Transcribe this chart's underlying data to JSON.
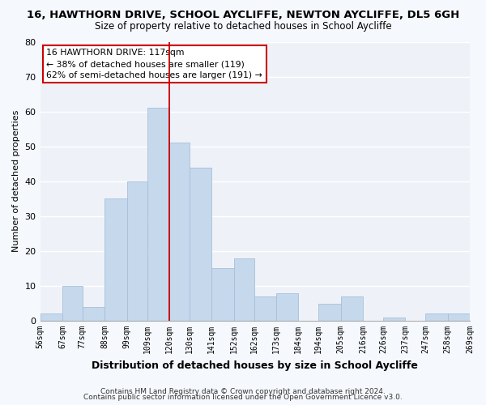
{
  "title": "16, HAWTHORN DRIVE, SCHOOL AYCLIFFE, NEWTON AYCLIFFE, DL5 6GH",
  "subtitle": "Size of property relative to detached houses in School Aycliffe",
  "xlabel": "Distribution of detached houses by size in School Aycliffe",
  "ylabel": "Number of detached properties",
  "bin_edges": [
    56,
    67,
    77,
    88,
    99,
    109,
    120,
    130,
    141,
    152,
    162,
    173,
    184,
    194,
    205,
    216,
    226,
    237,
    247,
    258,
    269
  ],
  "bin_labels": [
    "56sqm",
    "67sqm",
    "77sqm",
    "88sqm",
    "99sqm",
    "109sqm",
    "120sqm",
    "130sqm",
    "141sqm",
    "152sqm",
    "162sqm",
    "173sqm",
    "184sqm",
    "194sqm",
    "205sqm",
    "216sqm",
    "226sqm",
    "237sqm",
    "247sqm",
    "258sqm",
    "269sqm"
  ],
  "counts": [
    2,
    10,
    4,
    35,
    40,
    61,
    51,
    44,
    15,
    18,
    7,
    8,
    0,
    5,
    7,
    0,
    1,
    0,
    2,
    2
  ],
  "bar_color": "#c5d8ec",
  "bar_edge_color": "#a8c0d8",
  "vline_x": 120,
  "vline_color": "#cc0000",
  "ylim": [
    0,
    80
  ],
  "annotation_line1": "16 HAWTHORN DRIVE: 117sqm",
  "annotation_line2": "← 38% of detached houses are smaller (119)",
  "annotation_line3": "62% of semi-detached houses are larger (191) →",
  "annotation_box_color": "white",
  "annotation_box_edge": "#cc0000",
  "footer1": "Contains HM Land Registry data © Crown copyright and database right 2024.",
  "footer2": "Contains public sector information licensed under the Open Government Licence v3.0.",
  "background_color": "#f5f8fc",
  "plot_bg_color": "#eef2f8",
  "grid_color": "#ffffff",
  "title_fontsize": 9.5,
  "subtitle_fontsize": 8.5,
  "ytick_labels": [
    "0",
    "10",
    "20",
    "30",
    "40",
    "50",
    "60",
    "70",
    "80"
  ]
}
